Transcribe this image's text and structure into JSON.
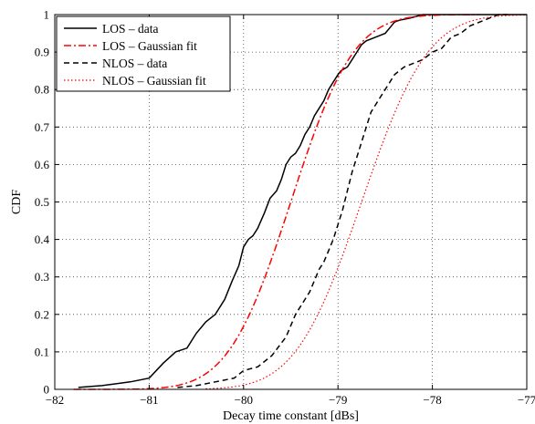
{
  "chart_data": {
    "type": "line",
    "xlabel": "Decay time constant [dBs]",
    "ylabel": "CDF",
    "xlim": [
      -82,
      -77
    ],
    "ylim": [
      0,
      1
    ],
    "xticks": [
      -82,
      -81,
      -80,
      -79,
      -78,
      -77
    ],
    "yticks": [
      0,
      0.1,
      0.2,
      0.3,
      0.4,
      0.5,
      0.6,
      0.7,
      0.8,
      0.9,
      1
    ],
    "grid": true,
    "legend_position": "top-left",
    "series": [
      {
        "name": "LOS – data",
        "color": "#000000",
        "style": "solid",
        "x": [
          -81.75,
          -81.5,
          -81.2,
          -81.0,
          -80.85,
          -80.72,
          -80.6,
          -80.55,
          -80.5,
          -80.4,
          -80.3,
          -80.2,
          -80.12,
          -80.05,
          -80.0,
          -79.95,
          -79.9,
          -79.85,
          -79.78,
          -79.72,
          -79.65,
          -79.6,
          -79.55,
          -79.5,
          -79.45,
          -79.4,
          -79.35,
          -79.3,
          -79.25,
          -79.2,
          -79.15,
          -79.1,
          -79.05,
          -79.0,
          -78.97,
          -78.9,
          -78.85,
          -78.8,
          -78.75,
          -78.7,
          -78.6,
          -78.5,
          -78.4,
          -78.35,
          -78.25,
          -78.1,
          -78.0,
          -77.9,
          -77.0
        ],
        "y": [
          0.005,
          0.01,
          0.02,
          0.03,
          0.07,
          0.1,
          0.11,
          0.13,
          0.15,
          0.18,
          0.2,
          0.24,
          0.29,
          0.33,
          0.38,
          0.4,
          0.41,
          0.43,
          0.47,
          0.51,
          0.53,
          0.56,
          0.6,
          0.62,
          0.63,
          0.65,
          0.68,
          0.7,
          0.73,
          0.75,
          0.77,
          0.8,
          0.82,
          0.84,
          0.85,
          0.86,
          0.88,
          0.9,
          0.92,
          0.93,
          0.94,
          0.95,
          0.98,
          0.985,
          0.99,
          1.0,
          1.0,
          1.0,
          1.0
        ],
        "line_x_range": [
          -81.75,
          -77.0
        ]
      },
      {
        "name": "LOS – Gaussian fit",
        "color": "#ff0000",
        "style": "dashdot",
        "gauss": {
          "mu": -79.5,
          "sigma": 0.52
        },
        "line_x_range": [
          -81.8,
          -77.5
        ]
      },
      {
        "name": "NLOS – data",
        "color": "#000000",
        "style": "dashed",
        "x": [
          -80.7,
          -80.5,
          -80.3,
          -80.1,
          -80.0,
          -79.85,
          -79.7,
          -79.55,
          -79.45,
          -79.3,
          -79.2,
          -79.15,
          -79.1,
          -79.05,
          -79.0,
          -78.95,
          -78.9,
          -78.85,
          -78.8,
          -78.75,
          -78.7,
          -78.65,
          -78.6,
          -78.55,
          -78.5,
          -78.45,
          -78.4,
          -78.3,
          -78.2,
          -78.1,
          -78.0,
          -77.9,
          -77.8,
          -77.7,
          -77.6,
          -77.5,
          -77.4,
          -77.3,
          -77.2
        ],
        "y": [
          0.005,
          0.01,
          0.02,
          0.03,
          0.05,
          0.06,
          0.09,
          0.14,
          0.2,
          0.26,
          0.32,
          0.34,
          0.37,
          0.4,
          0.44,
          0.48,
          0.53,
          0.58,
          0.62,
          0.66,
          0.7,
          0.74,
          0.76,
          0.78,
          0.8,
          0.82,
          0.84,
          0.86,
          0.87,
          0.88,
          0.9,
          0.91,
          0.94,
          0.95,
          0.97,
          0.98,
          0.99,
          1.0,
          1.0
        ],
        "line_x_range": [
          -80.7,
          -77.2
        ]
      },
      {
        "name": "NLOS – Gaussian fit",
        "color": "#ff0000",
        "style": "dotted",
        "gauss": {
          "mu": -78.75,
          "sigma": 0.55
        },
        "line_x_range": [
          -80.4,
          -77.0
        ]
      }
    ]
  }
}
